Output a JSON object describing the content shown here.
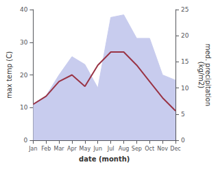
{
  "chart_data": {
    "type": "line",
    "xlabel": "date (month)",
    "ylabel": "max temp (C)",
    "y2label": "med. precipitation\n(kg/m2)",
    "categories": [
      "Jan",
      "Feb",
      "Mar",
      "Apr",
      "May",
      "Jun",
      "Jul",
      "Aug",
      "Sep",
      "Oct",
      "Nov",
      "Dec"
    ],
    "series": [
      {
        "type": "area",
        "axis": "y2",
        "color": "#c8ccee",
        "values": [
          7,
          8.5,
          12.5,
          16,
          14.5,
          10,
          23.5,
          24,
          19.5,
          19.5,
          12.5,
          11.5
        ]
      },
      {
        "type": "line",
        "color": "#993344",
        "values": [
          11,
          13.5,
          18,
          20,
          16.5,
          23,
          27,
          27,
          23,
          18,
          13,
          9
        ]
      }
    ],
    "ylim": [
      0,
      40
    ],
    "yticks": [
      0,
      10,
      20,
      30,
      40
    ],
    "y2lim": [
      0,
      25
    ],
    "y2ticks": [
      0,
      5,
      10,
      15,
      20,
      25
    ],
    "grid": false
  }
}
